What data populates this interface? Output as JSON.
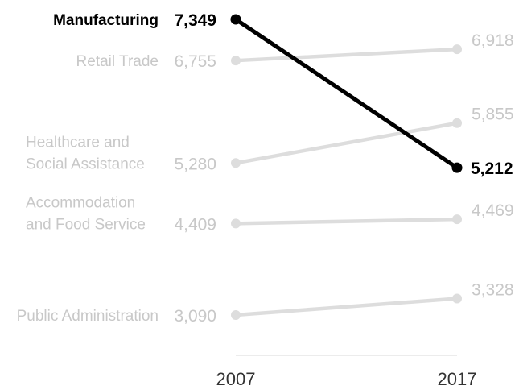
{
  "chart_data": {
    "type": "line",
    "title": "",
    "xlabel": "",
    "ylabel": "",
    "x": [
      "2007",
      "2017"
    ],
    "ylim": [
      2800,
      7600
    ],
    "grid": false,
    "legend": "none",
    "highlight_color": "#000000",
    "muted_color": "#dddddd",
    "muted_text_color": "#c8c8c8",
    "series": [
      {
        "name": "Manufacturing",
        "label_lines": [
          "Manufacturing"
        ],
        "values": [
          7349,
          5212
        ],
        "display": [
          "7,349",
          "5,212"
        ],
        "highlight": true
      },
      {
        "name": "Retail Trade",
        "label_lines": [
          "Retail Trade"
        ],
        "values": [
          6755,
          6918
        ],
        "display": [
          "6,755",
          "6,918"
        ],
        "highlight": false
      },
      {
        "name": "Healthcare and Social Assistance",
        "label_lines": [
          "Healthcare and",
          "Social Assistance"
        ],
        "values": [
          5280,
          5855
        ],
        "display": [
          "5,280",
          "5,855"
        ],
        "highlight": false
      },
      {
        "name": "Accommodation and Food Service",
        "label_lines": [
          "Accommodation",
          "and Food Service"
        ],
        "values": [
          4409,
          4469
        ],
        "display": [
          "4,409",
          "4,469"
        ],
        "highlight": false
      },
      {
        "name": "Public Administration",
        "label_lines": [
          "Public Administration"
        ],
        "values": [
          3090,
          3328
        ],
        "display": [
          "3,090",
          "3,328"
        ],
        "highlight": false
      }
    ]
  }
}
